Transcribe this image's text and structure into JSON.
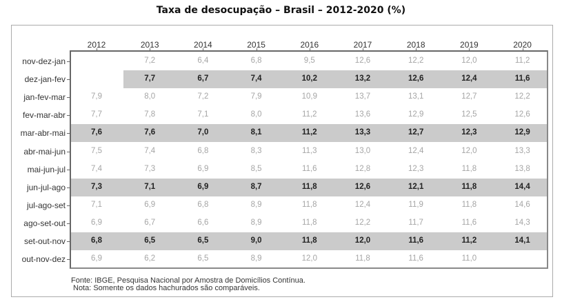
{
  "chart_data": {
    "type": "table",
    "title": "Taxa de desocupação – Brasil – 2012-2020 (%)",
    "columns": [
      "2012",
      "2013",
      "2014",
      "2015",
      "2016",
      "2017",
      "2018",
      "2019",
      "2020"
    ],
    "rows": [
      {
        "label": "nov-dez-jan",
        "highlight": false,
        "values": [
          null,
          "7,2",
          "6,4",
          "6,8",
          "9,5",
          "12,6",
          "12,2",
          "12,0",
          "11,2"
        ]
      },
      {
        "label": "dez-jan-fev",
        "highlight": true,
        "values": [
          null,
          "7,7",
          "6,7",
          "7,4",
          "10,2",
          "13,2",
          "12,6",
          "12,4",
          "11,6"
        ]
      },
      {
        "label": "jan-fev-mar",
        "highlight": false,
        "values": [
          "7,9",
          "8,0",
          "7,2",
          "7,9",
          "10,9",
          "13,7",
          "13,1",
          "12,7",
          "12,2"
        ]
      },
      {
        "label": "fev-mar-abr",
        "highlight": false,
        "values": [
          "7,7",
          "7,8",
          "7,1",
          "8,0",
          "11,2",
          "13,6",
          "12,9",
          "12,5",
          "12,6"
        ]
      },
      {
        "label": "mar-abr-mai",
        "highlight": true,
        "values": [
          "7,6",
          "7,6",
          "7,0",
          "8,1",
          "11,2",
          "13,3",
          "12,7",
          "12,3",
          "12,9"
        ]
      },
      {
        "label": "abr-mai-jun",
        "highlight": false,
        "values": [
          "7,5",
          "7,4",
          "6,8",
          "8,3",
          "11,3",
          "13,0",
          "12,4",
          "12,0",
          "13,3"
        ]
      },
      {
        "label": "mai-jun-jul",
        "highlight": false,
        "values": [
          "7,4",
          "7,3",
          "6,9",
          "8,5",
          "11,6",
          "12,8",
          "12,3",
          "11,8",
          "13,8"
        ]
      },
      {
        "label": "jun-jul-ago",
        "highlight": true,
        "values": [
          "7,3",
          "7,1",
          "6,9",
          "8,7",
          "11,8",
          "12,6",
          "12,1",
          "11,8",
          "14,4"
        ]
      },
      {
        "label": "jul-ago-set",
        "highlight": false,
        "values": [
          "7,1",
          "6,9",
          "6,8",
          "8,9",
          "11,8",
          "12,4",
          "11,9",
          "11,8",
          "14,6"
        ]
      },
      {
        "label": "ago-set-out",
        "highlight": false,
        "values": [
          "6,9",
          "6,7",
          "6,6",
          "8,9",
          "11,8",
          "12,2",
          "11,7",
          "11,6",
          "14,3"
        ]
      },
      {
        "label": "set-out-nov",
        "highlight": true,
        "values": [
          "6,8",
          "6,5",
          "6,5",
          "9,0",
          "11,8",
          "12,0",
          "11,6",
          "11,2",
          "14,1"
        ]
      },
      {
        "label": "out-nov-dez",
        "highlight": false,
        "values": [
          "6,9",
          "6,2",
          "6,5",
          "8,9",
          "12,0",
          "11,8",
          "11,6",
          "11,0",
          null
        ]
      }
    ],
    "source": "Fonte: IBGE, Pesquisa Nacional por Amostra de Domicílios Contínua.",
    "note": "Nota: Somente os dados hachurados são comparáveis.",
    "highlight_color": "#cbcbcb"
  }
}
